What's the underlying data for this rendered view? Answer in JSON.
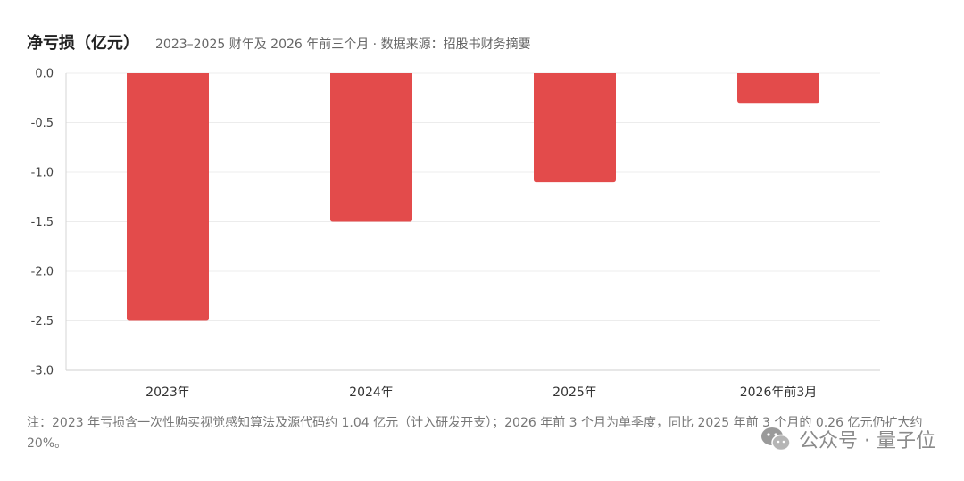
{
  "chart_data": {
    "type": "bar",
    "title": "净亏损（亿元）",
    "subtitle": "2023–2025 财年及 2026 年前三个月 · 数据来源：招股书财务摘要",
    "categories": [
      "2023年",
      "2024年",
      "2025年",
      "2026年前3月"
    ],
    "values": [
      -2.5,
      -1.5,
      -1.1,
      -0.3
    ],
    "ylim": [
      -3.0,
      0.0
    ],
    "yticks": [
      "0.0",
      "-0.5",
      "-1.0",
      "-1.5",
      "-2.0",
      "-2.5",
      "-3.0"
    ],
    "grid": true,
    "bar_color": "#e34b4b"
  },
  "footnote": "注：2023 年亏损含一次性购买视觉感知算法及源代码约 1.04 亿元（计入研发开支）；2026 年前 3 个月为单季度，同比 2025 年前 3 个月的 0.26 亿元仍扩大约 20%。",
  "watermark": {
    "icon": "wechat-icon",
    "text": "公众号 · 量子位"
  }
}
